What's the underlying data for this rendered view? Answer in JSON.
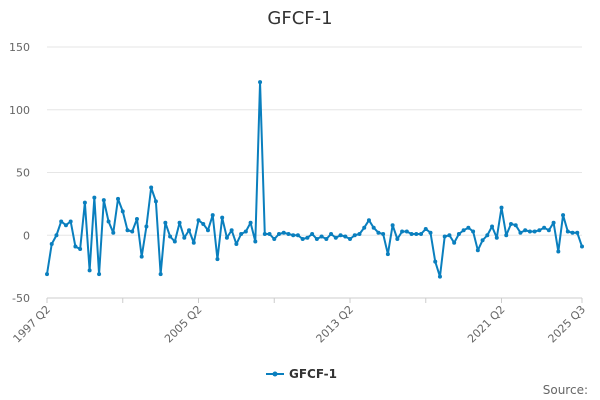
{
  "chart_data": {
    "type": "line",
    "title": "GFCF-1",
    "xlabel": "",
    "ylabel": "",
    "ylim": [
      -50,
      150
    ],
    "yticks": [
      150,
      100,
      50,
      0,
      -50
    ],
    "x_tick_labels": [
      "1997 Q2",
      "2005 Q2",
      "2013 Q2",
      "2021 Q2",
      "2025 Q3"
    ],
    "start_period": "1997 Q2",
    "end_period": "2025 Q3",
    "grid": true,
    "legend_position": "bottom",
    "series": [
      {
        "name": "GFCF-1",
        "color": "#0a7fbe",
        "values": [
          -31,
          -7,
          0,
          11,
          8,
          11,
          -9,
          -11,
          26,
          -28,
          30,
          -31,
          28,
          11,
          2,
          29,
          19,
          4,
          3,
          13,
          -17,
          7,
          38,
          27,
          -31,
          10,
          -1,
          -5,
          10,
          -2,
          4,
          -6,
          12,
          9,
          4,
          16,
          -19,
          14,
          -2,
          4,
          -7,
          1,
          3,
          10,
          -5,
          122,
          1,
          1,
          -3,
          1,
          2,
          1,
          0,
          0,
          -3,
          -2,
          1,
          -3,
          -1,
          -3,
          1,
          -2,
          0,
          -1,
          -3,
          0,
          1,
          6,
          12,
          6,
          2,
          1,
          -15,
          8,
          -3,
          3,
          3,
          1,
          1,
          1,
          5,
          2,
          -21,
          -33,
          -1,
          0,
          -6,
          1,
          4,
          6,
          3,
          -12,
          -4,
          0,
          7,
          -2,
          22,
          0,
          9,
          8,
          2,
          4,
          3,
          3,
          4,
          6,
          4,
          10,
          -13,
          16,
          3,
          2,
          2,
          -9
        ]
      }
    ]
  },
  "source_label": "Source:"
}
